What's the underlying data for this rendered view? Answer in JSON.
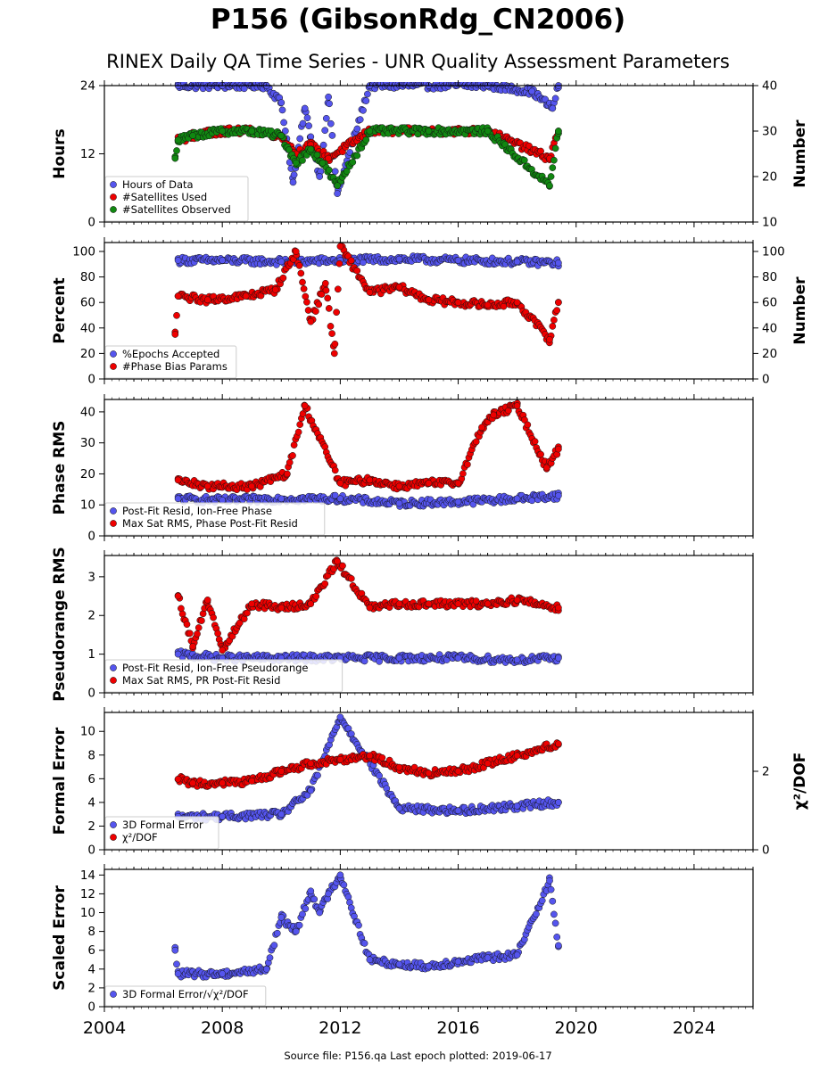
{
  "header": {
    "title": "P156 (GibsonRdg_CN2006)",
    "subtitle": "RINEX Daily QA Time Series - UNR Quality Assessment Parameters"
  },
  "footer": {
    "source": "Source file: P156.qa Last epoch plotted: 2019-06-17"
  },
  "colors": {
    "blue": "#5555ee",
    "red": "#ee0000",
    "green": "#118811",
    "edge": "#111111"
  },
  "chart_data": [
    {
      "type": "scatter",
      "xlim": [
        2004,
        2026
      ],
      "x_ticks": [
        2004,
        2008,
        2012,
        2016,
        2020,
        2024
      ],
      "ylabel": "Hours",
      "ylim": [
        0,
        24
      ],
      "y_ticks": [
        0,
        12,
        24
      ],
      "ylabel_right": "Number",
      "ylim_right": [
        10,
        40
      ],
      "y_ticks_right": [
        10,
        20,
        30,
        40
      ],
      "legend_position": "lower-left",
      "series": [
        {
          "name": "Hours of Data",
          "color": "blue",
          "axis": "left",
          "x": [
            2006.5,
            2008.0,
            2009.5,
            2010.0,
            2010.4,
            2010.8,
            2011.0,
            2011.3,
            2011.6,
            2011.9,
            2013.0,
            2015.0,
            2017.0,
            2018.5,
            2019.2,
            2019.4
          ],
          "y": [
            24,
            24,
            24,
            21,
            7,
            20,
            15,
            8,
            22,
            5,
            24,
            24,
            24,
            23,
            20,
            24
          ]
        },
        {
          "name": "#Satellites Used",
          "color": "red",
          "axis": "right",
          "x": [
            2006.5,
            2007.0,
            2008.0,
            2009.0,
            2010.0,
            2010.5,
            2011.0,
            2011.6,
            2013.0,
            2015.0,
            2017.0,
            2019.1,
            2019.4
          ],
          "y": [
            28,
            29,
            30,
            30,
            29,
            25,
            27,
            24,
            30,
            30,
            30,
            24,
            30
          ]
        },
        {
          "name": "#Satellites Observed",
          "color": "green",
          "axis": "right",
          "x": [
            2006.4,
            2006.5,
            2007.0,
            2008.0,
            2009.0,
            2010.0,
            2010.5,
            2011.0,
            2011.4,
            2011.9,
            2013.0,
            2015.0,
            2017.0,
            2019.1,
            2019.4
          ],
          "y": [
            24,
            28,
            29,
            30,
            30,
            29,
            23,
            26,
            23,
            18,
            30,
            30,
            30,
            18,
            30
          ]
        }
      ]
    },
    {
      "type": "scatter",
      "xlim": [
        2004,
        2026
      ],
      "x_ticks": [
        2004,
        2008,
        2012,
        2016,
        2020,
        2024
      ],
      "ylabel": "Percent",
      "ylim": [
        0,
        107
      ],
      "y_ticks": [
        0,
        20,
        40,
        60,
        80,
        100
      ],
      "ylabel_right": "Number",
      "ylim_right": [
        0,
        107
      ],
      "y_ticks_right": [
        0,
        20,
        40,
        60,
        80,
        100
      ],
      "legend_position": "lower-left",
      "series": [
        {
          "name": "%Epochs Accepted",
          "color": "blue",
          "axis": "left",
          "x": [
            2006.5,
            2008.0,
            2010.0,
            2012.0,
            2014.0,
            2016.0,
            2018.0,
            2019.4
          ],
          "y": [
            93,
            93,
            92,
            93,
            94,
            93,
            92,
            91
          ]
        },
        {
          "name": "#Phase Bias Params",
          "color": "red",
          "axis": "right",
          "x": [
            2006.4,
            2006.5,
            2007.5,
            2008.8,
            2009.8,
            2010.5,
            2011.0,
            2011.5,
            2011.8,
            2012.0,
            2013.0,
            2014.0,
            2015.0,
            2016.0,
            2017.0,
            2018.0,
            2019.1,
            2019.4
          ],
          "y": [
            35,
            65,
            62,
            65,
            70,
            100,
            45,
            75,
            20,
            104,
            68,
            72,
            62,
            60,
            58,
            60,
            31,
            60
          ]
        }
      ]
    },
    {
      "type": "scatter",
      "xlim": [
        2004,
        2026
      ],
      "x_ticks": [
        2004,
        2008,
        2012,
        2016,
        2020,
        2024
      ],
      "ylabel": "Phase RMS",
      "ylim": [
        0,
        44
      ],
      "y_ticks": [
        0,
        10,
        20,
        30,
        40
      ],
      "legend_position": "lower-left",
      "series": [
        {
          "name": "Post-Fit Resid, Ion-Free Phase",
          "color": "blue",
          "x": [
            2006.5,
            2008.0,
            2010.0,
            2012.0,
            2014.0,
            2016.0,
            2018.0,
            2019.4
          ],
          "y": [
            12,
            11.5,
            12,
            12,
            10.5,
            11,
            12,
            13
          ]
        },
        {
          "name": "Max Sat RMS, Phase Post-Fit Resid",
          "color": "red",
          "x": [
            2006.5,
            2007.5,
            2009.0,
            2010.2,
            2010.8,
            2012.0,
            2013.0,
            2014.0,
            2015.0,
            2016.0,
            2016.8,
            2017.2,
            2018.0,
            2019.0,
            2019.4
          ],
          "y": [
            18,
            16,
            16,
            20,
            42,
            17,
            18,
            16,
            17,
            17,
            35,
            39,
            42,
            22,
            28
          ]
        }
      ]
    },
    {
      "type": "scatter",
      "xlim": [
        2004,
        2026
      ],
      "x_ticks": [
        2004,
        2008,
        2012,
        2016,
        2020,
        2024
      ],
      "ylabel": "Pseudorange RMS",
      "ylim": [
        0,
        3.55
      ],
      "y_ticks": [
        0,
        1,
        2,
        3
      ],
      "legend_position": "lower-left",
      "series": [
        {
          "name": "Post-Fit Resid, Ion-Free Pseudorange",
          "color": "blue",
          "x": [
            2006.5,
            2008.0,
            2010.0,
            2012.0,
            2014.0,
            2016.0,
            2018.0,
            2019.4
          ],
          "y": [
            1.0,
            0.9,
            0.9,
            0.9,
            0.9,
            0.9,
            0.85,
            0.9
          ]
        },
        {
          "name": "Max Sat RMS, PR Post-Fit Resid",
          "color": "red",
          "x": [
            2006.5,
            2007.0,
            2007.5,
            2008.0,
            2009.0,
            2010.0,
            2011.0,
            2011.9,
            2013.0,
            2014.0,
            2015.0,
            2016.0,
            2017.0,
            2018.0,
            2019.4
          ],
          "y": [
            2.5,
            1.2,
            2.4,
            1.1,
            2.3,
            2.2,
            2.3,
            3.4,
            2.2,
            2.3,
            2.3,
            2.3,
            2.3,
            2.4,
            2.2
          ]
        }
      ]
    },
    {
      "type": "scatter",
      "xlim": [
        2004,
        2026
      ],
      "x_ticks": [
        2004,
        2008,
        2012,
        2016,
        2020,
        2024
      ],
      "ylabel": "Formal Error",
      "ylim": [
        0,
        11.6
      ],
      "y_ticks": [
        0,
        2,
        4,
        6,
        8,
        10
      ],
      "ylabel_right": "χ²/DOF",
      "ylim_right": [
        0,
        3.5
      ],
      "y_ticks_right": [
        0,
        2
      ],
      "legend_position": "lower-left",
      "series": [
        {
          "name": "3D Formal Error",
          "color": "blue",
          "axis": "left",
          "x": [
            2006.5,
            2008.0,
            2010.0,
            2011.0,
            2012.0,
            2014.0,
            2016.0,
            2018.0,
            2019.4
          ],
          "y": [
            2.8,
            2.8,
            3.0,
            5.0,
            11.2,
            3.5,
            3.3,
            3.7,
            4.0
          ]
        },
        {
          "name": "χ²/DOF",
          "color": "red",
          "axis": "right",
          "x": [
            2006.5,
            2007.0,
            2008.0,
            2009.0,
            2010.0,
            2011.0,
            2012.0,
            2013.0,
            2014.0,
            2015.0,
            2016.0,
            2017.0,
            2018.0,
            2019.4
          ],
          "y": [
            1.8,
            1.7,
            1.7,
            1.75,
            2.0,
            2.2,
            2.3,
            2.4,
            2.1,
            1.95,
            2.0,
            2.2,
            2.4,
            2.7
          ]
        }
      ]
    },
    {
      "type": "scatter",
      "xlim": [
        2004,
        2026
      ],
      "x_ticks": [
        2004,
        2008,
        2012,
        2016,
        2020,
        2024
      ],
      "ylabel": "Scaled Error",
      "ylim": [
        0,
        14.6
      ],
      "y_ticks": [
        0,
        2,
        4,
        6,
        8,
        10,
        12,
        14
      ],
      "legend_position": "lower-left",
      "series": [
        {
          "name": "3D Formal Error/√χ²/DOF",
          "color": "blue",
          "x": [
            2006.4,
            2006.5,
            2008.0,
            2009.5,
            2010.0,
            2010.5,
            2011.0,
            2011.3,
            2011.6,
            2012.0,
            2013.0,
            2014.0,
            2015.0,
            2016.0,
            2017.0,
            2018.0,
            2019.1,
            2019.4
          ],
          "y": [
            6.0,
            3.5,
            3.5,
            4.0,
            9.5,
            8.0,
            12.3,
            10.0,
            12.0,
            14.0,
            5.0,
            4.5,
            4.3,
            4.8,
            5.2,
            5.5,
            13.4,
            6.5
          ]
        }
      ]
    }
  ]
}
